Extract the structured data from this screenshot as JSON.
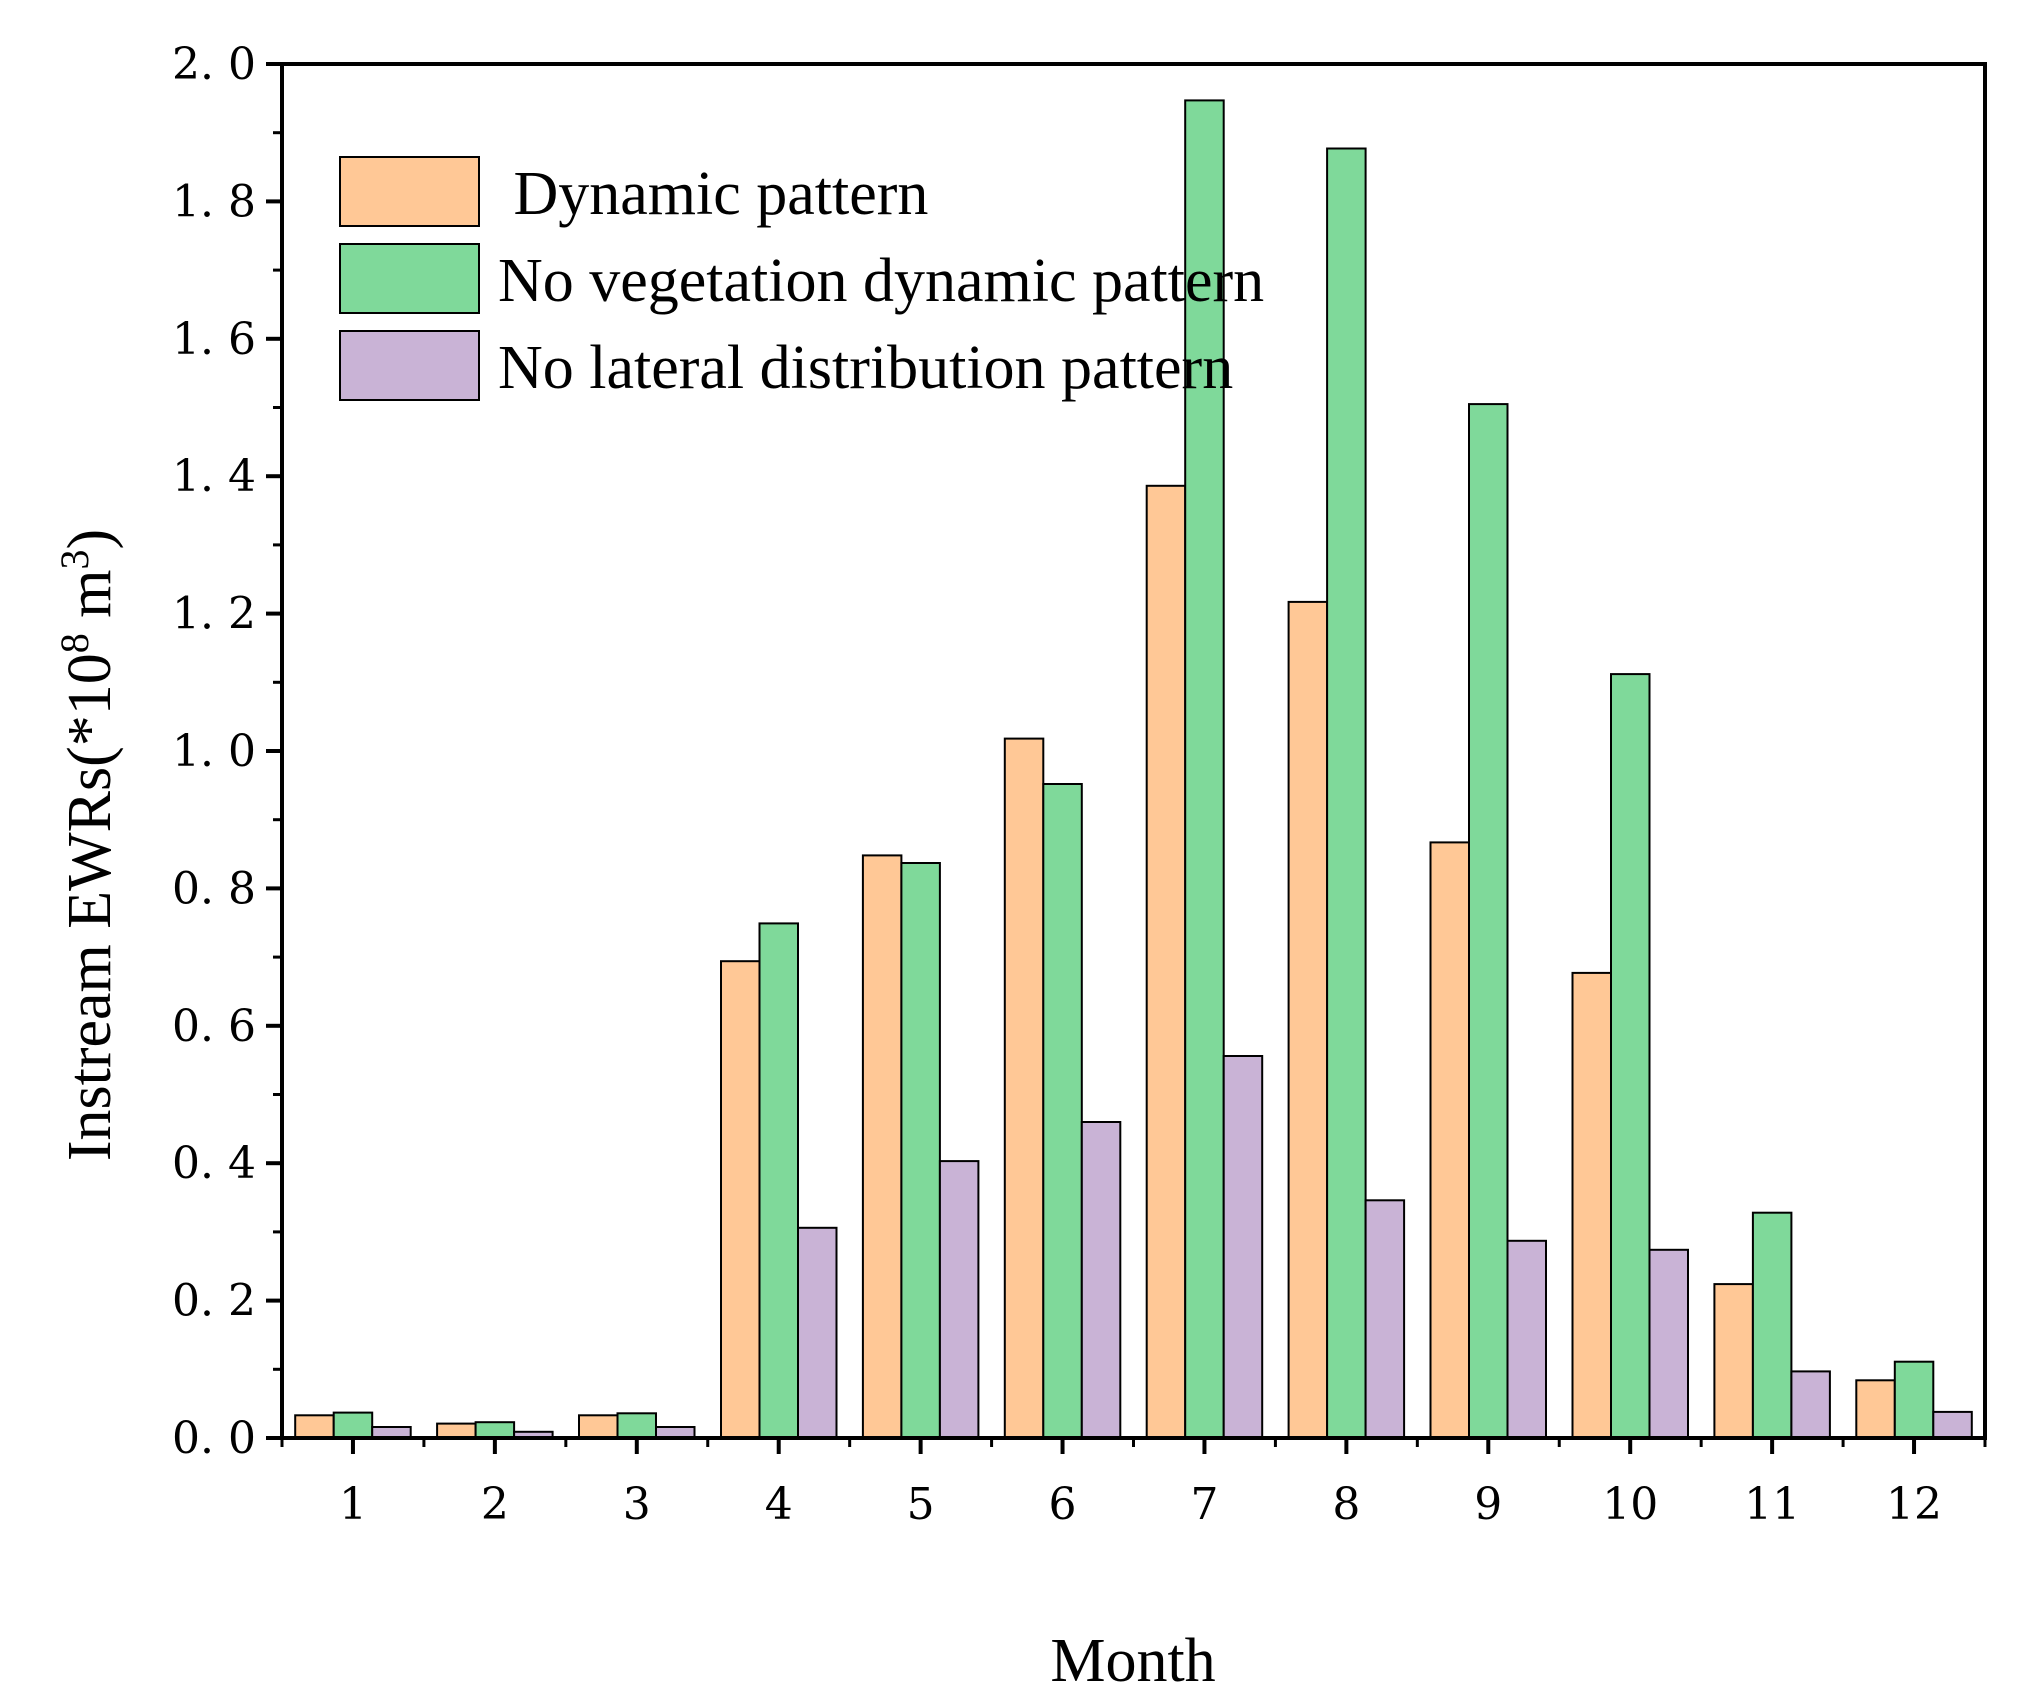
{
  "chart_data": {
    "type": "bar",
    "title": "",
    "xlabel": "Month",
    "ylabel_main": "Instream EWRs(*10",
    "ylabel_exp1": "8",
    "ylabel_unit": " m",
    "ylabel_exp2": "3",
    "ylabel_close": ")",
    "categories": [
      "1",
      "2",
      "3",
      "4",
      "5",
      "6",
      "7",
      "8",
      "9",
      "10",
      "11",
      "12"
    ],
    "ylim": [
      0,
      2.0
    ],
    "yticks": [
      "0. 0",
      "0. 2",
      "0. 4",
      "0. 6",
      "0. 8",
      "1. 0",
      "1. 2",
      "1. 4",
      "1. 6",
      "1. 8",
      "2. 0"
    ],
    "ytick_values": [
      0,
      0.2,
      0.4,
      0.6,
      0.8,
      1.0,
      1.2,
      1.4,
      1.6,
      1.8,
      2.0
    ],
    "legend_position": "top-left",
    "series": [
      {
        "name": "Dynamic pattern",
        "legend_label": " Dynamic pattern",
        "color": "#FFC896",
        "values": [
          0.033,
          0.021,
          0.033,
          0.694,
          0.848,
          1.018,
          1.386,
          1.217,
          0.867,
          0.677,
          0.224,
          0.084
        ]
      },
      {
        "name": "No vegetation dynamic pattern",
        "legend_label": "No vegetation dynamic pattern",
        "color": "#7FD99A",
        "values": [
          0.037,
          0.023,
          0.036,
          0.749,
          0.837,
          0.952,
          1.947,
          1.877,
          1.505,
          1.112,
          0.328,
          0.111
        ]
      },
      {
        "name": "No lateral distribution pattern",
        "legend_label": "No lateral distribution pattern",
        "color": "#C9B3D6",
        "values": [
          0.016,
          0.009,
          0.016,
          0.306,
          0.403,
          0.46,
          0.556,
          0.346,
          0.287,
          0.274,
          0.097,
          0.038
        ]
      }
    ]
  }
}
